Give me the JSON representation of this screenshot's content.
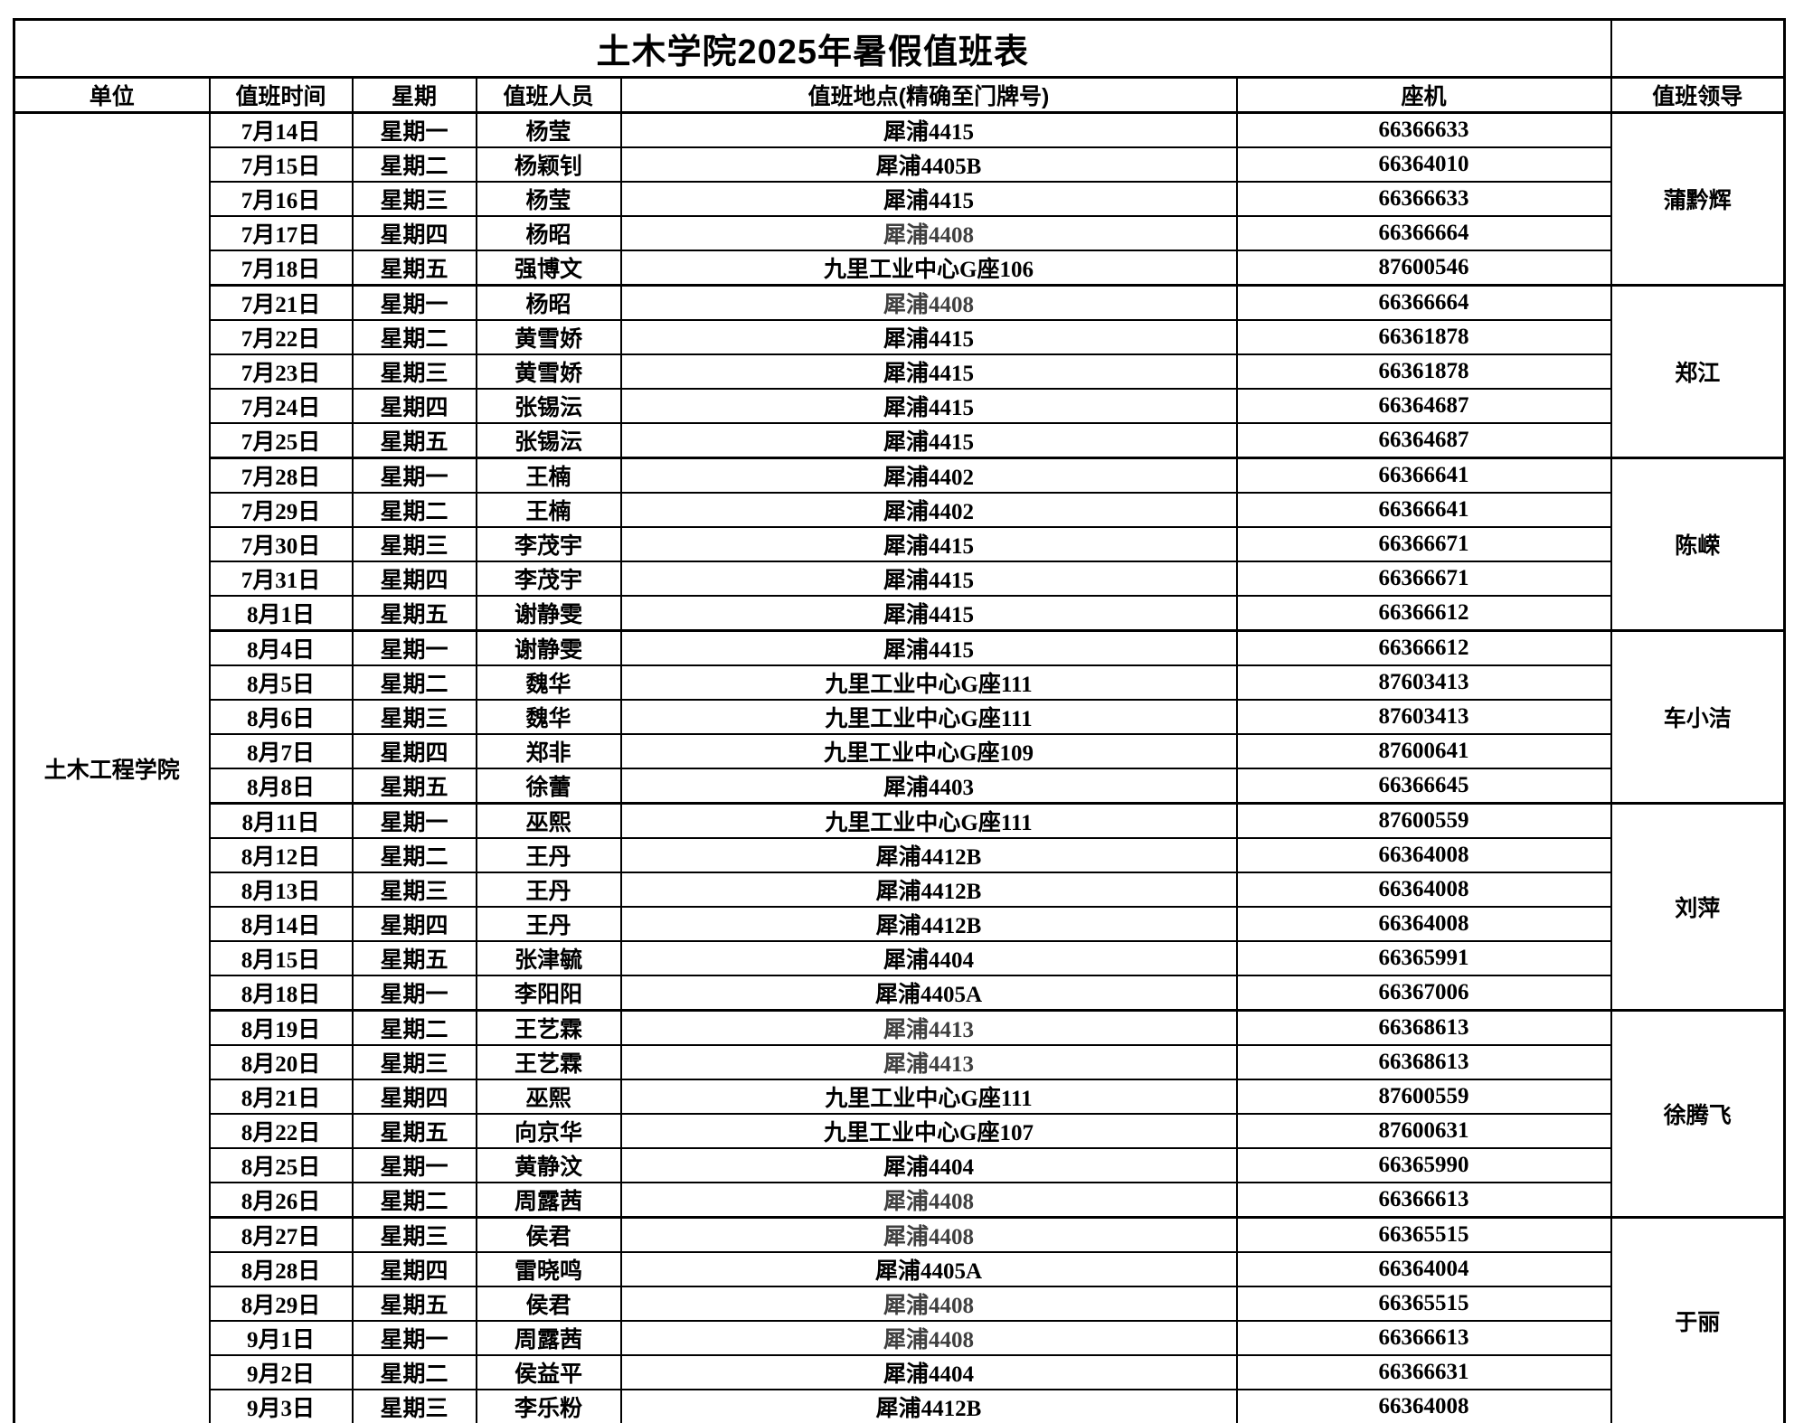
{
  "title": "土木学院2025年暑假值班表",
  "columns": [
    "单位",
    "值班时间",
    "星期",
    "值班人员",
    "值班地点(精确至门牌号)",
    "座机",
    "值班领导"
  ],
  "unit": "土木工程学院",
  "colors": {
    "background": "#ffffff",
    "border": "#000000",
    "text": "#000000",
    "muted_text": "#3f3f3f"
  },
  "groups": [
    {
      "leader": "蒲黔辉",
      "rows": [
        {
          "date": "7月14日",
          "weekday": "星期一",
          "person": "杨莹",
          "location": "犀浦4415",
          "phone": "66366633",
          "muted": false
        },
        {
          "date": "7月15日",
          "weekday": "星期二",
          "person": "杨颖钊",
          "location": "犀浦4405B",
          "phone": "66364010",
          "muted": false
        },
        {
          "date": "7月16日",
          "weekday": "星期三",
          "person": "杨莹",
          "location": "犀浦4415",
          "phone": "66366633",
          "muted": false
        },
        {
          "date": "7月17日",
          "weekday": "星期四",
          "person": "杨昭",
          "location": "犀浦4408",
          "phone": "66366664",
          "muted": true
        },
        {
          "date": "7月18日",
          "weekday": "星期五",
          "person": "强博文",
          "location": "九里工业中心G座106",
          "phone": "87600546",
          "muted": false
        }
      ]
    },
    {
      "leader": "郑江",
      "rows": [
        {
          "date": "7月21日",
          "weekday": "星期一",
          "person": "杨昭",
          "location": "犀浦4408",
          "phone": "66366664",
          "muted": true
        },
        {
          "date": "7月22日",
          "weekday": "星期二",
          "person": "黄雪娇",
          "location": "犀浦4415",
          "phone": "66361878",
          "muted": false
        },
        {
          "date": "7月23日",
          "weekday": "星期三",
          "person": "黄雪娇",
          "location": "犀浦4415",
          "phone": "66361878",
          "muted": false
        },
        {
          "date": "7月24日",
          "weekday": "星期四",
          "person": "张锡沄",
          "location": "犀浦4415",
          "phone": "66364687",
          "muted": false
        },
        {
          "date": "7月25日",
          "weekday": "星期五",
          "person": "张锡沄",
          "location": "犀浦4415",
          "phone": "66364687",
          "muted": false
        }
      ]
    },
    {
      "leader": "陈嵘",
      "rows": [
        {
          "date": "7月28日",
          "weekday": "星期一",
          "person": "王楠",
          "location": "犀浦4402",
          "phone": "66366641",
          "muted": false
        },
        {
          "date": "7月29日",
          "weekday": "星期二",
          "person": "王楠",
          "location": "犀浦4402",
          "phone": "66366641",
          "muted": false
        },
        {
          "date": "7月30日",
          "weekday": "星期三",
          "person": "李茂宇",
          "location": "犀浦4415",
          "phone": "66366671",
          "muted": false
        },
        {
          "date": "7月31日",
          "weekday": "星期四",
          "person": "李茂宇",
          "location": "犀浦4415",
          "phone": "66366671",
          "muted": false
        },
        {
          "date": "8月1日",
          "weekday": "星期五",
          "person": "谢静雯",
          "location": "犀浦4415",
          "phone": "66366612",
          "muted": false
        }
      ]
    },
    {
      "leader": "车小洁",
      "rows": [
        {
          "date": "8月4日",
          "weekday": "星期一",
          "person": "谢静雯",
          "location": "犀浦4415",
          "phone": "66366612",
          "muted": false
        },
        {
          "date": "8月5日",
          "weekday": "星期二",
          "person": "魏华",
          "location": "九里工业中心G座111",
          "phone": "87603413",
          "muted": false
        },
        {
          "date": "8月6日",
          "weekday": "星期三",
          "person": "魏华",
          "location": "九里工业中心G座111",
          "phone": "87603413",
          "muted": false
        },
        {
          "date": "8月7日",
          "weekday": "星期四",
          "person": "郑非",
          "location": "九里工业中心G座109",
          "phone": "87600641",
          "muted": false
        },
        {
          "date": "8月8日",
          "weekday": "星期五",
          "person": "徐蕾",
          "location": "犀浦4403",
          "phone": "66366645",
          "muted": false
        }
      ]
    },
    {
      "leader": "刘萍",
      "rows": [
        {
          "date": "8月11日",
          "weekday": "星期一",
          "person": "巫熙",
          "location": "九里工业中心G座111",
          "phone": "87600559",
          "muted": false
        },
        {
          "date": "8月12日",
          "weekday": "星期二",
          "person": "王丹",
          "location": "犀浦4412B",
          "phone": "66364008",
          "muted": false
        },
        {
          "date": "8月13日",
          "weekday": "星期三",
          "person": "王丹",
          "location": "犀浦4412B",
          "phone": "66364008",
          "muted": false
        },
        {
          "date": "8月14日",
          "weekday": "星期四",
          "person": "王丹",
          "location": "犀浦4412B",
          "phone": "66364008",
          "muted": false
        },
        {
          "date": "8月15日",
          "weekday": "星期五",
          "person": "张津毓",
          "location": "犀浦4404",
          "phone": "66365991",
          "muted": false
        },
        {
          "date": "8月18日",
          "weekday": "星期一",
          "person": "李阳阳",
          "location": "犀浦4405A",
          "phone": "66367006",
          "muted": false
        }
      ]
    },
    {
      "leader": "徐腾飞",
      "rows": [
        {
          "date": "8月19日",
          "weekday": "星期二",
          "person": "王艺霖",
          "location": "犀浦4413",
          "phone": "66368613",
          "muted": true
        },
        {
          "date": "8月20日",
          "weekday": "星期三",
          "person": "王艺霖",
          "location": "犀浦4413",
          "phone": "66368613",
          "muted": true
        },
        {
          "date": "8月21日",
          "weekday": "星期四",
          "person": "巫熙",
          "location": "九里工业中心G座111",
          "phone": "87600559",
          "muted": false
        },
        {
          "date": "8月22日",
          "weekday": "星期五",
          "person": "向京华",
          "location": "九里工业中心G座107",
          "phone": "87600631",
          "muted": false
        },
        {
          "date": "8月25日",
          "weekday": "星期一",
          "person": "黄静汶",
          "location": "犀浦4404",
          "phone": "66365990",
          "muted": false
        },
        {
          "date": "8月26日",
          "weekday": "星期二",
          "person": "周露茜",
          "location": "犀浦4408",
          "phone": "66366613",
          "muted": true
        }
      ]
    },
    {
      "leader": "于丽",
      "rows": [
        {
          "date": "8月27日",
          "weekday": "星期三",
          "person": "侯君",
          "location": "犀浦4408",
          "phone": "66365515",
          "muted": true
        },
        {
          "date": "8月28日",
          "weekday": "星期四",
          "person": "雷晓鸣",
          "location": "犀浦4405A",
          "phone": "66364004",
          "muted": false
        },
        {
          "date": "8月29日",
          "weekday": "星期五",
          "person": "侯君",
          "location": "犀浦4408",
          "phone": "66365515",
          "muted": true
        },
        {
          "date": "9月1日",
          "weekday": "星期一",
          "person": "周露茜",
          "location": "犀浦4408",
          "phone": "66366613",
          "muted": true
        },
        {
          "date": "9月2日",
          "weekday": "星期二",
          "person": "侯益平",
          "location": "犀浦4404",
          "phone": "66366631",
          "muted": false
        },
        {
          "date": "9月3日",
          "weekday": "星期三",
          "person": "李乐粉",
          "location": "犀浦4412B",
          "phone": "66364008",
          "muted": false
        }
      ]
    }
  ]
}
